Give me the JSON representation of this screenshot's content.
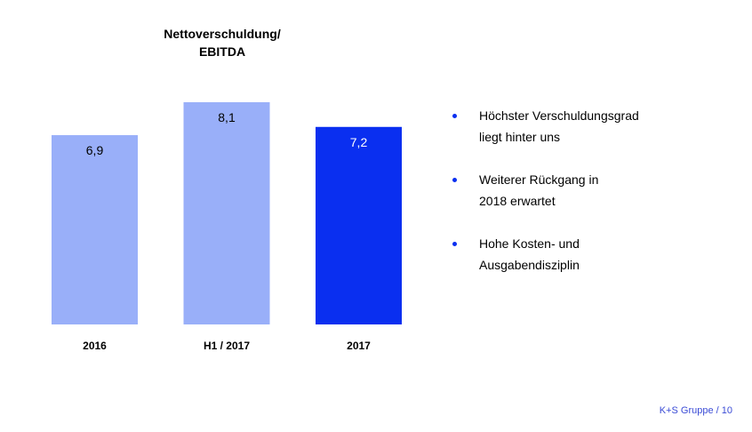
{
  "chart_data": {
    "type": "bar",
    "title_lines": [
      "Nettoverschuldung/",
      "EBITDA"
    ],
    "categories": [
      "2016",
      "H1 / 2017",
      "2017"
    ],
    "values": [
      6.9,
      8.1,
      7.2
    ],
    "value_labels": [
      "6,9",
      "8,1",
      "7,2"
    ],
    "bar_colors": [
      "#99aff9",
      "#99aff9",
      "#0a2ff0"
    ],
    "label_colors": [
      "#000000",
      "#000000",
      "#ffffff"
    ],
    "ylim": [
      0,
      8.1
    ]
  },
  "bullets": [
    {
      "lines": [
        "Höchster Verschuldungsgrad",
        "liegt hinter uns"
      ]
    },
    {
      "lines": [
        "Weiterer Rückgang  in",
        "2018 erwartet"
      ]
    },
    {
      "lines": [
        "Hohe Kosten- und",
        "Ausgabendisziplin"
      ]
    }
  ],
  "footer": "K+S Gruppe  / 10",
  "colors": {
    "light_bar": "#99aff9",
    "dark_bar": "#0a2ff0",
    "bullet": "#0a2ff0",
    "footer": "#3b4cd6"
  }
}
